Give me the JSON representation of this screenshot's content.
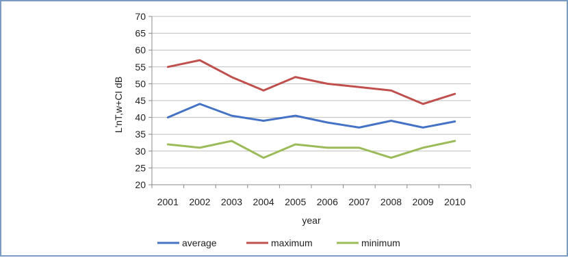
{
  "colors": {
    "border": "#7a9cc4",
    "grid": "#bdbdbd",
    "average": "#4472c4",
    "maximum": "#c0504d",
    "minimum": "#9bbb59"
  },
  "chart_data": {
    "type": "line",
    "title": "",
    "xlabel": "year",
    "ylabel": "L'nT,w+CI  dB",
    "ylim": [
      20,
      70
    ],
    "ytick_step": 5,
    "grid": true,
    "legend_position": "bottom",
    "categories": [
      "2001",
      "2002",
      "2003",
      "2004",
      "2005",
      "2006",
      "2007",
      "2008",
      "2009",
      "2010"
    ],
    "series": [
      {
        "name": "average",
        "color": "#4472c4",
        "values": [
          40,
          44,
          40.5,
          39,
          40.5,
          38.5,
          37,
          39,
          37,
          38.8
        ]
      },
      {
        "name": "maximum",
        "color": "#c0504d",
        "values": [
          55,
          57,
          52,
          48,
          52,
          50,
          49,
          48,
          44,
          47
        ]
      },
      {
        "name": "minimum",
        "color": "#9bbb59",
        "values": [
          32,
          31,
          33,
          28,
          32,
          31,
          31,
          28,
          31,
          33
        ]
      }
    ]
  }
}
